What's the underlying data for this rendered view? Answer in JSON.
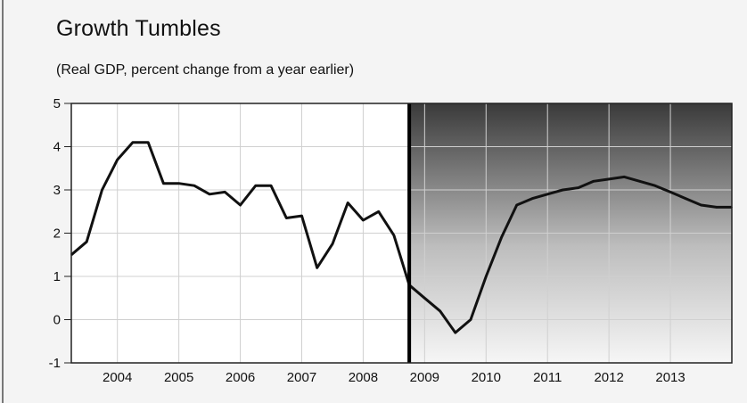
{
  "chart_data": {
    "type": "line",
    "title": "Growth Tumbles",
    "subtitle": "(Real GDP, percent change from a year earlier)",
    "xlabel": "",
    "ylabel": "",
    "ylim": [
      -1,
      5
    ],
    "xlim": [
      2003.25,
      2014.0
    ],
    "y_ticks": [
      "5",
      "4",
      "3",
      "2",
      "1",
      "0",
      "-1"
    ],
    "y_tick_values": [
      5,
      4,
      3,
      2,
      1,
      0,
      -1
    ],
    "x_ticks": [
      "2004",
      "2005",
      "2006",
      "2007",
      "2008",
      "2009",
      "2010",
      "2011",
      "2012",
      "2013"
    ],
    "x_tick_values": [
      2004.0,
      2005.0,
      2006.0,
      2007.0,
      2008.0,
      2009.0,
      2010.0,
      2011.0,
      2012.0,
      2013.0
    ],
    "forecast_start": 2008.75,
    "grid": true,
    "legend": "none",
    "colors": {
      "line": "#111111",
      "forecast_shade_top": "#3a3a3a",
      "forecast_shade_bottom": "#f6f6f6",
      "divider": "#000000"
    },
    "series": [
      {
        "x": [
          2003.25,
          2003.5,
          2003.75,
          2004.0,
          2004.25,
          2004.5,
          2004.75,
          2005.0,
          2005.25,
          2005.5,
          2005.75,
          2006.0,
          2006.25,
          2006.5,
          2006.75,
          2007.0,
          2007.25,
          2007.5,
          2007.75,
          2008.0,
          2008.25,
          2008.5,
          2008.75,
          2009.0,
          2009.25,
          2009.5,
          2009.75,
          2010.0,
          2010.25,
          2010.5,
          2010.75,
          2011.0,
          2011.25,
          2011.5,
          2011.75,
          2012.0,
          2012.25,
          2012.5,
          2012.75,
          2013.0,
          2013.25,
          2013.5,
          2013.75,
          2014.0
        ],
        "values": [
          1.5,
          1.8,
          3.0,
          3.7,
          4.1,
          4.1,
          3.15,
          3.15,
          3.1,
          2.9,
          2.95,
          2.65,
          3.1,
          3.1,
          2.35,
          2.4,
          1.2,
          1.75,
          2.7,
          2.3,
          2.5,
          1.95,
          0.8,
          0.5,
          0.2,
          -0.3,
          0.0,
          1.0,
          1.9,
          2.65,
          2.8,
          2.9,
          3.0,
          3.05,
          3.2,
          3.25,
          3.3,
          3.2,
          3.1,
          2.95,
          2.8,
          2.65,
          2.6,
          2.6
        ]
      }
    ]
  }
}
